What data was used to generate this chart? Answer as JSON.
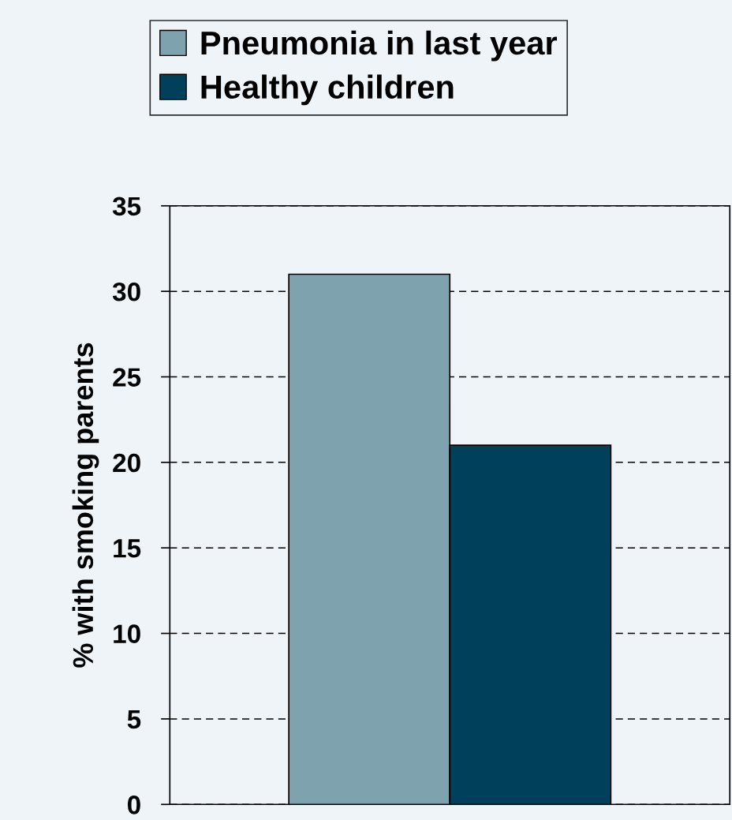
{
  "chart_data": {
    "type": "bar",
    "ylabel": "% with smoking parents",
    "categories": [
      null
    ],
    "series": [
      {
        "name": "Pneumonia in last year",
        "color": "#7fa3ae",
        "values": [
          31
        ]
      },
      {
        "name": "Healthy children",
        "color": "#00405a",
        "values": [
          21
        ]
      }
    ],
    "ylim": [
      0,
      35
    ],
    "yticks": [
      0,
      5,
      10,
      15,
      20,
      25,
      30,
      35
    ],
    "grid": "y",
    "legend": "top"
  }
}
